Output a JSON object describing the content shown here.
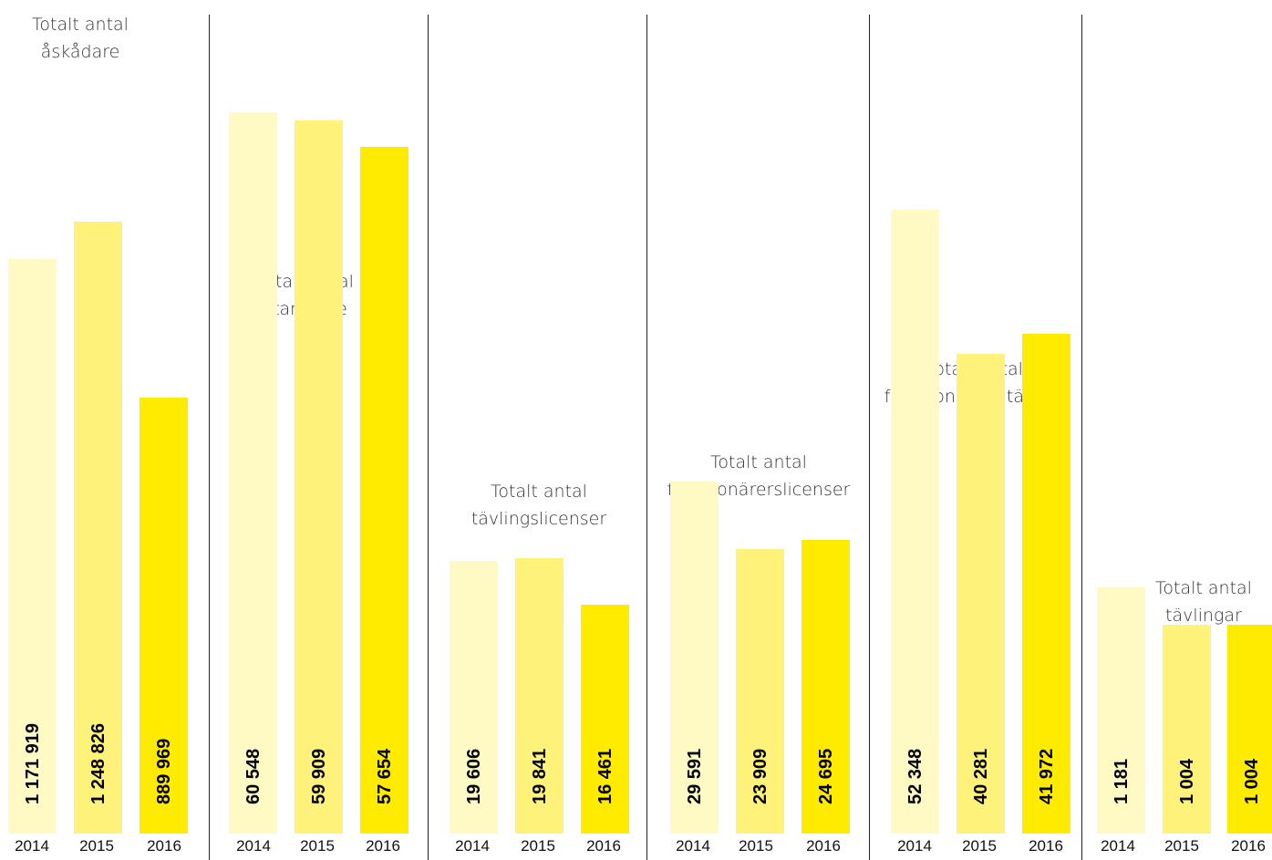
{
  "chart_data": [
    {
      "type": "bar",
      "title": [
        "Totalt antal",
        "åskådare"
      ],
      "categories": [
        "2014",
        "2015",
        "2016"
      ],
      "values": [
        1171919,
        1248826,
        889969
      ],
      "value_labels": [
        "1 171 919",
        "1 248 826",
        "889 969"
      ],
      "ylim": [
        0,
        1700000
      ]
    },
    {
      "type": "bar",
      "title": [
        "Totalt antal",
        "startande"
      ],
      "categories": [
        "2014",
        "2015",
        "2016"
      ],
      "values": [
        60548,
        59909,
        57654
      ],
      "value_labels": [
        "60 548",
        "59 909",
        "57 654"
      ],
      "ylim": [
        0,
        70000
      ]
    },
    {
      "type": "bar",
      "title": [
        "Totalt antal",
        "tävlingslicenser"
      ],
      "categories": [
        "2014",
        "2015",
        "2016"
      ],
      "values": [
        19606,
        19841,
        16461
      ],
      "value_labels": [
        "19 606",
        "19 841",
        "16 461"
      ],
      "ylim": [
        0,
        60000
      ]
    },
    {
      "type": "bar",
      "title": [
        "Totalt antal",
        "funktionärerslicenser"
      ],
      "categories": [
        "2014",
        "2015",
        "2016"
      ],
      "values": [
        29591,
        23909,
        24695
      ],
      "value_labels": [
        "29 591",
        "23 909",
        "24 695"
      ],
      "ylim": [
        0,
        70000
      ]
    },
    {
      "type": "bar",
      "title": [
        "Totalt antal",
        "funktionärer i tävling"
      ],
      "categories": [
        "2014",
        "2015",
        "2016"
      ],
      "values": [
        52348,
        40281,
        41972
      ],
      "value_labels": [
        "52 348",
        "40 281",
        "41 972"
      ],
      "ylim": [
        0,
        70000
      ]
    },
    {
      "type": "bar",
      "title": [
        "Totalt antal",
        "tävlingar"
      ],
      "categories": [
        "2014",
        "2015",
        "2016"
      ],
      "values": [
        1181,
        1004,
        1004
      ],
      "value_labels": [
        "1 181",
        "1 004",
        "1 004"
      ],
      "ylim": [
        0,
        4000
      ]
    }
  ],
  "colors": {
    "2014": "#FFF9C4",
    "2015": "#FFF27A",
    "2016": "#FFEB00",
    "divider": "#222222"
  }
}
